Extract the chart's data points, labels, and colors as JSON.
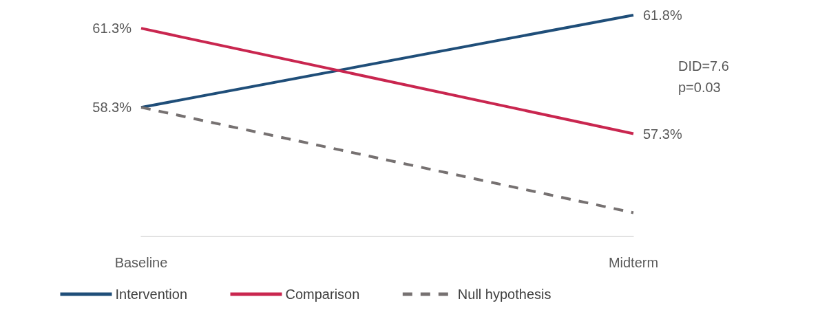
{
  "chart_data": {
    "type": "line",
    "categories": [
      "Baseline",
      "Midterm"
    ],
    "tick_labels": "x",
    "grid": false,
    "legend": "bottom",
    "marker": "none",
    "series": [
      {
        "name": "Intervention",
        "color": "#1f4e79",
        "values": [
          58.3,
          61.8
        ],
        "value_labels": [
          "58.3%",
          "61.8%"
        ],
        "line_style": "solid"
      },
      {
        "name": "Comparison",
        "color": "#c9264f",
        "values": [
          61.3,
          57.3
        ],
        "value_labels": [
          "61.3%",
          "57.3%"
        ],
        "line_style": "solid"
      },
      {
        "name": "Null hypothesis",
        "color": "#767171",
        "values": [
          58.3,
          54.3
        ],
        "line_style": "dashed"
      }
    ],
    "annotations": [
      "DID=7.6",
      "p=0.03"
    ]
  }
}
